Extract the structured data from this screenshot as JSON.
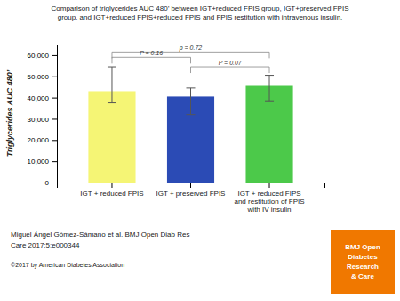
{
  "chart_data": {
    "type": "bar",
    "title": "Comparison of triglycerides AUC 480’ between IGT+reduced FPIS group, IGT+preserved FPIS\ngroup, and IGT+reduced FPIS+reduced FPIS and FPIS restitution with intravenous insulin.",
    "categories": [
      "IGT + reduced FPIS",
      "IGT + preserved FPIS",
      "IGT + reduced FIPS\nand restitution of FPIS\nwith IV insulin"
    ],
    "values": [
      43000,
      40500,
      45500
    ],
    "error_lower": [
      37500,
      32000,
      38500
    ],
    "error_upper": [
      54500,
      44500,
      50500
    ],
    "colors": [
      "#F5F575",
      "#2B4BB5",
      "#4CC94A"
    ],
    "ylabel": "Triglycerides AUC 480’",
    "ylim": [
      0,
      65000
    ],
    "yticks": [
      0,
      {
        "value": 10000,
        "label": "10,000"
      },
      {
        "value": 20000,
        "label": "20,000"
      },
      {
        "value": 30000,
        "label": "30,000"
      },
      {
        "value": 40000,
        "label": "40,000"
      },
      {
        "value": 50000,
        "label": "50,000"
      },
      {
        "value": 60000,
        "label": "60,000"
      }
    ],
    "grid": false,
    "annotations": [
      {
        "bars": [
          0,
          1
        ],
        "label": "P = 0.16",
        "height": 59000
      },
      {
        "bars": [
          0,
          2
        ],
        "label": "p = 0.72",
        "height": 61500
      },
      {
        "bars": [
          1,
          2
        ],
        "label": "P = 0.07",
        "height": 54500
      }
    ],
    "footnotes": [
      "Miguel Ángel Gómez-Sámano et al. BMJ Open Diab Res",
      "Care 2017;5:e000344",
      "©2017 by American Diabetes Association"
    ],
    "logo": {
      "text": "BMJ Open\nDiabetes\nResearch\n& Care",
      "color": "#F07800"
    }
  }
}
